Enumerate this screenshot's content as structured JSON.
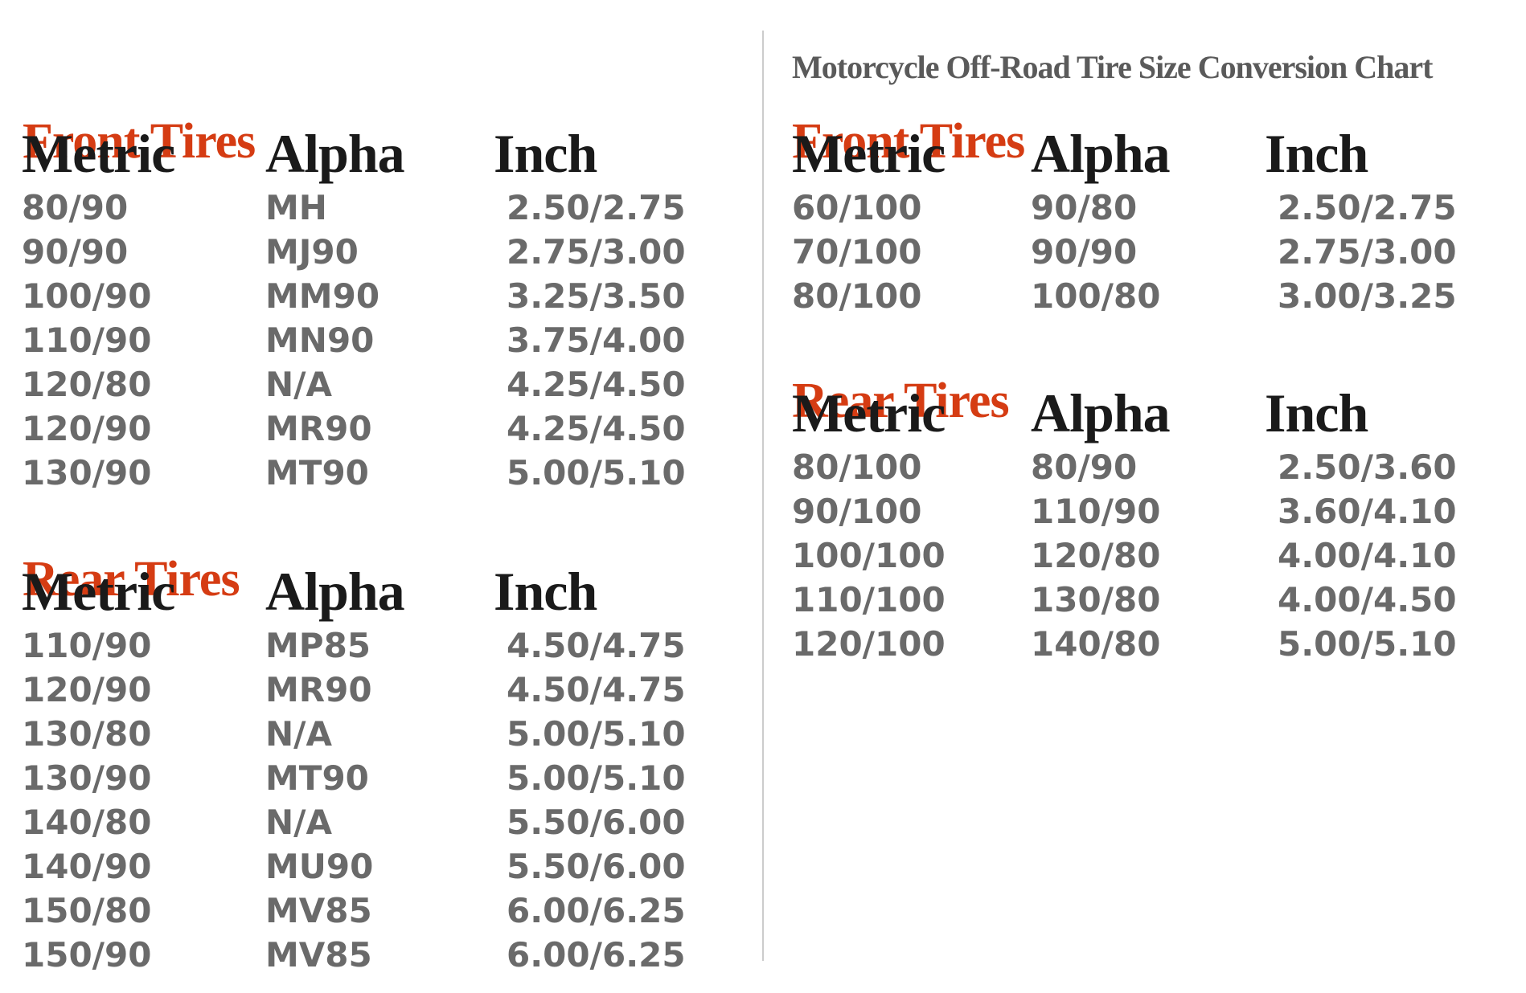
{
  "title": "Motorcycle Off-Road Tire Size Conversion Chart",
  "colors": {
    "accent_red": "#d53c13",
    "header_black": "#1a1a1a",
    "data_gray": "#6a6a6a",
    "title_gray": "#5a5a5a",
    "divider_gray": "#cccccc"
  },
  "street_chart": {
    "front": {
      "heading": "Front Tires",
      "columns": [
        "Metric",
        "Alpha",
        "Inch"
      ],
      "rows": [
        [
          "80/90",
          "MH",
          "2.50/2.75"
        ],
        [
          "90/90",
          "MJ90",
          "2.75/3.00"
        ],
        [
          "100/90",
          "MM90",
          "3.25/3.50"
        ],
        [
          "110/90",
          "MN90",
          "3.75/4.00"
        ],
        [
          "120/80",
          "N/A",
          "4.25/4.50"
        ],
        [
          "120/90",
          "MR90",
          "4.25/4.50"
        ],
        [
          "130/90",
          "MT90",
          "5.00/5.10"
        ]
      ]
    },
    "rear": {
      "heading": "Rear Tires",
      "columns": [
        "Metric",
        "Alpha",
        "Inch"
      ],
      "rows": [
        [
          "110/90",
          "MP85",
          "4.50/4.75"
        ],
        [
          "120/90",
          "MR90",
          "4.50/4.75"
        ],
        [
          "130/80",
          "N/A",
          "5.00/5.10"
        ],
        [
          "130/90",
          "MT90",
          "5.00/5.10"
        ],
        [
          "140/80",
          "N/A",
          "5.50/6.00"
        ],
        [
          "140/90",
          "MU90",
          "5.50/6.00"
        ],
        [
          "150/80",
          "MV85",
          "6.00/6.25"
        ],
        [
          "150/90",
          "MV85",
          "6.00/6.25"
        ]
      ]
    }
  },
  "offroad_chart": {
    "front": {
      "heading": "Front Tires",
      "columns": [
        "Metric",
        "Alpha",
        "Inch"
      ],
      "rows": [
        [
          "60/100",
          "90/80",
          "2.50/2.75"
        ],
        [
          "70/100",
          "90/90",
          "2.75/3.00"
        ],
        [
          "80/100",
          "100/80",
          "3.00/3.25"
        ]
      ]
    },
    "rear": {
      "heading": "Rear Tires",
      "columns": [
        "Metric",
        "Alpha",
        "Inch"
      ],
      "rows": [
        [
          "80/100",
          "80/90",
          "2.50/3.60"
        ],
        [
          "90/100",
          "110/90",
          "3.60/4.10"
        ],
        [
          "100/100",
          "120/80",
          "4.00/4.10"
        ],
        [
          "110/100",
          "130/80",
          "4.00/4.50"
        ],
        [
          "120/100",
          "140/80",
          "5.00/5.10"
        ]
      ]
    }
  }
}
